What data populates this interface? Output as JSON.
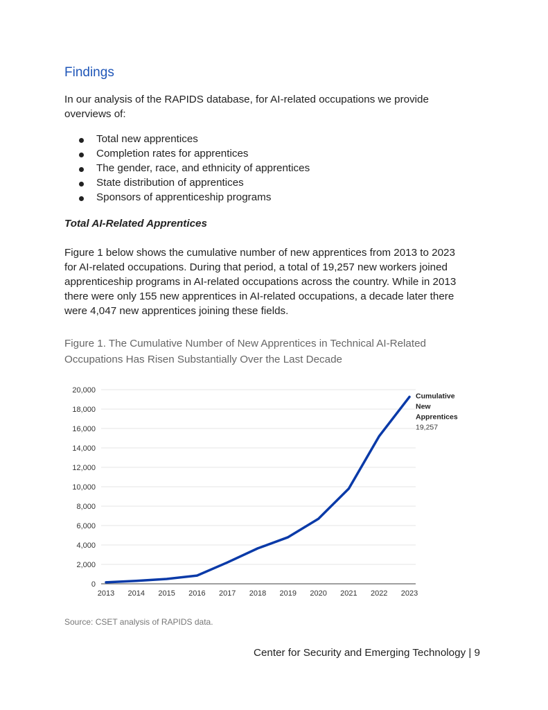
{
  "heading": "Findings",
  "intro_lines": [
    "In our analysis of the RAPIDS database, for AI-related occupations we provide",
    "overviews of:"
  ],
  "bullets": [
    "Total new apprentices",
    "Completion rates for apprentices",
    "The gender, race, and ethnicity of apprentices",
    "State distribution of apprentices",
    "Sponsors of apprenticeship programs"
  ],
  "subheading": "Total AI-Related Apprentices",
  "paragraph_lines": [
    "Figure 1 below shows the cumulative number of new apprentices from 2013 to 2023",
    "for AI-related occupations. During that period, a total of 19,257 new workers joined",
    "apprenticeship programs in AI-related occupations across the country. While in 2013",
    "there were only 155 new apprentices in AI-related occupations, a decade later there",
    "were 4,047 new apprentices joining these fields."
  ],
  "figure_caption_lines": [
    "Figure 1. The Cumulative Number of New Apprentices in Technical AI-Related",
    "Occupations Has Risen Substantially Over the Last Decade"
  ],
  "source": "Source: CSET analysis of RAPIDS data.",
  "footer": "Center for Security and Emerging Technology | 9",
  "chart_data": {
    "type": "line",
    "title": "",
    "xlabel": "",
    "ylabel": "",
    "categories": [
      "2013",
      "2014",
      "2015",
      "2016",
      "2017",
      "2018",
      "2019",
      "2020",
      "2021",
      "2022",
      "2023"
    ],
    "series": [
      {
        "name": "Cumulative New Apprentices",
        "values": [
          155,
          300,
          500,
          850,
          2200,
          3650,
          4800,
          6700,
          9800,
          15200,
          19257
        ],
        "color": "#0a3aa8"
      }
    ],
    "end_label": {
      "name_lines": [
        "Cumulative",
        "New",
        "Apprentices"
      ],
      "value": "19,257"
    },
    "yticks": [
      "0",
      "2,000",
      "4,000",
      "6,000",
      "8,000",
      "10,000",
      "12,000",
      "14,000",
      "16,000",
      "18,000",
      "20,000"
    ],
    "ylim": [
      0,
      20000
    ],
    "grid": true,
    "legend": "none"
  }
}
